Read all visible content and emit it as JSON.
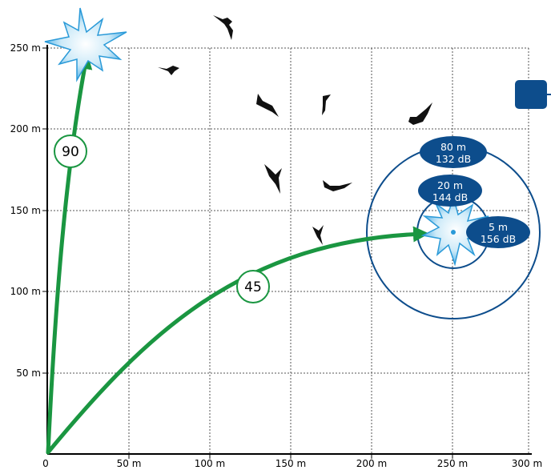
{
  "axes": {
    "x_ticks": [
      "0",
      "50 m",
      "100 m",
      "150 m",
      "200 m",
      "250 m",
      "300 m"
    ],
    "y_ticks": [
      "50 m",
      "100 m",
      "150 m",
      "200 m",
      "250 m"
    ]
  },
  "launch_angles": [
    {
      "label": "90"
    },
    {
      "label": "45"
    }
  ],
  "zones": [
    {
      "distance": "80 m",
      "level": "132 dB"
    },
    {
      "distance": "20 m",
      "level": "144 dB"
    },
    {
      "distance": "5 m",
      "level": "156 dB"
    }
  ],
  "colors": {
    "trajectory": "#1a9641",
    "zone": "#0d4d8c",
    "burst": "#9fd4f5",
    "grid": "#555555"
  }
}
